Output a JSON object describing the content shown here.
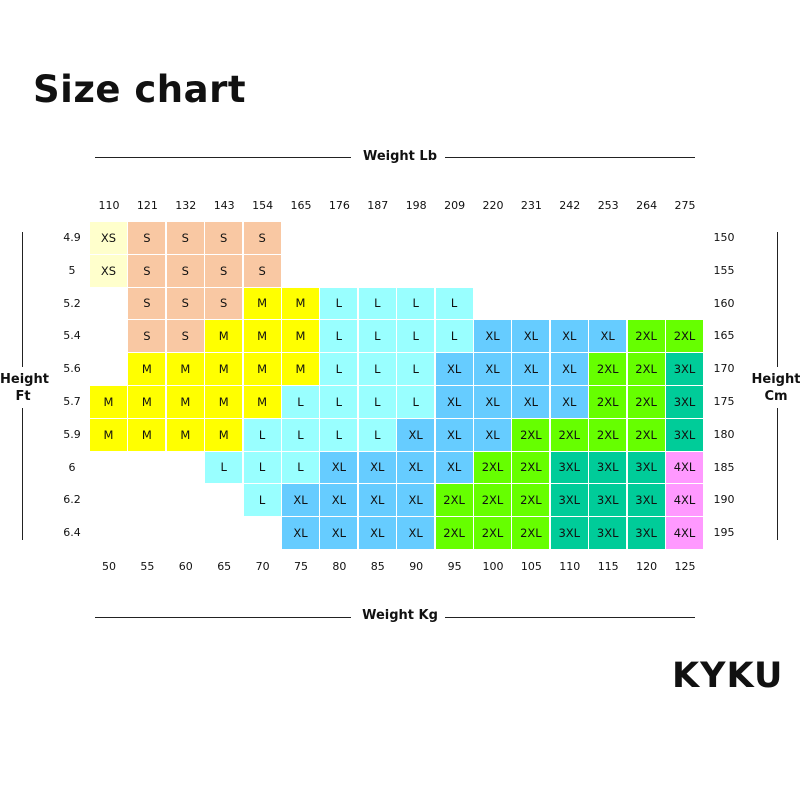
{
  "title": "Size chart",
  "brand": "KYKU",
  "chart_data": {
    "type": "table",
    "top_axis_label": "Weight Lb",
    "bottom_axis_label": "Weight Kg",
    "left_axis_label": [
      "Height",
      "Ft"
    ],
    "right_axis_label": [
      "Height",
      "Cm"
    ],
    "weight_lb": [
      "110",
      "121",
      "132",
      "143",
      "154",
      "165",
      "176",
      "187",
      "198",
      "209",
      "220",
      "231",
      "242",
      "253",
      "264",
      "275"
    ],
    "weight_kg": [
      "50",
      "55",
      "60",
      "65",
      "70",
      "75",
      "80",
      "85",
      "90",
      "95",
      "100",
      "105",
      "110",
      "115",
      "120",
      "125"
    ],
    "height_ft": [
      "4.9",
      "5",
      "5.2",
      "5.4",
      "5.6",
      "5.7",
      "5.9",
      "6",
      "6.2",
      "6.4"
    ],
    "height_cm": [
      "150",
      "155",
      "160",
      "165",
      "170",
      "175",
      "180",
      "185",
      "190",
      "195"
    ],
    "size_colors": {
      "XS": "#ffffcc",
      "S": "#f9c8a3",
      "M": "#ffff00",
      "L": "#99ffff",
      "XL": "#66ccff",
      "2XL": "#66ff00",
      "3XL": "#00cc99",
      "4XL": "#ff99ff"
    },
    "rows": [
      [
        "XS",
        "S",
        "S",
        "S",
        "S",
        "",
        "",
        "",
        "",
        "",
        "",
        "",
        "",
        "",
        "",
        ""
      ],
      [
        "XS",
        "S",
        "S",
        "S",
        "S",
        "",
        "",
        "",
        "",
        "",
        "",
        "",
        "",
        "",
        "",
        ""
      ],
      [
        "",
        "S",
        "S",
        "S",
        "M",
        "M",
        "L",
        "L",
        "L",
        "L",
        "",
        "",
        "",
        "",
        "",
        ""
      ],
      [
        "",
        "S",
        "S",
        "M",
        "M",
        "M",
        "L",
        "L",
        "L",
        "L",
        "XL",
        "XL",
        "XL",
        "XL",
        "2XL",
        "2XL"
      ],
      [
        "",
        "M",
        "M",
        "M",
        "M",
        "M",
        "L",
        "L",
        "L",
        "XL",
        "XL",
        "XL",
        "XL",
        "2XL",
        "2XL",
        "3XL"
      ],
      [
        "M",
        "M",
        "M",
        "M",
        "M",
        "L",
        "L",
        "L",
        "L",
        "XL",
        "XL",
        "XL",
        "XL",
        "2XL",
        "2XL",
        "3XL"
      ],
      [
        "M",
        "M",
        "M",
        "M",
        "L",
        "L",
        "L",
        "L",
        "XL",
        "XL",
        "XL",
        "2XL",
        "2XL",
        "2XL",
        "2XL",
        "3XL"
      ],
      [
        "",
        "",
        "",
        "L",
        "L",
        "L",
        "XL",
        "XL",
        "XL",
        "XL",
        "2XL",
        "2XL",
        "3XL",
        "3XL",
        "3XL",
        "4XL"
      ],
      [
        "",
        "",
        "",
        "",
        "L",
        "XL",
        "XL",
        "XL",
        "XL",
        "2XL",
        "2XL",
        "2XL",
        "3XL",
        "3XL",
        "3XL",
        "4XL"
      ],
      [
        "",
        "",
        "",
        "",
        "",
        "XL",
        "XL",
        "XL",
        "XL",
        "2XL",
        "2XL",
        "2XL",
        "3XL",
        "3XL",
        "3XL",
        "4XL"
      ]
    ]
  }
}
